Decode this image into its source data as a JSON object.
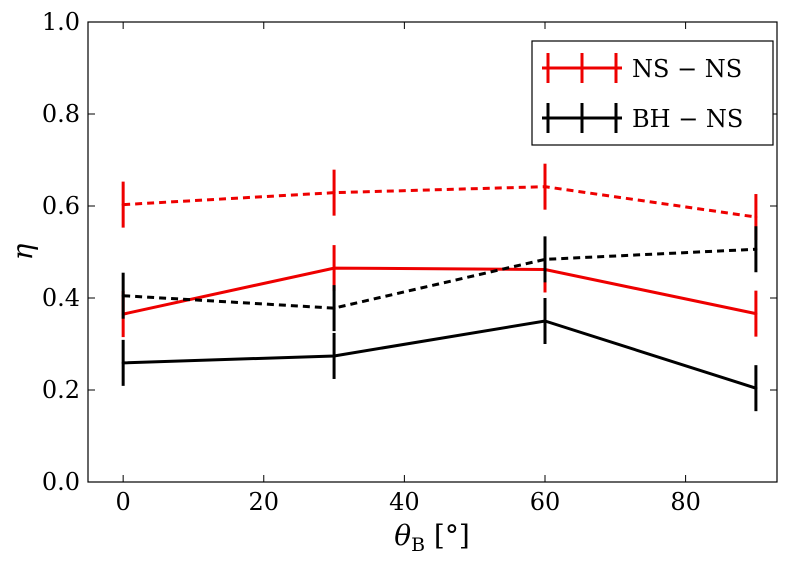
{
  "chart_data": {
    "type": "line",
    "title": "",
    "xlabel": "θ",
    "xlabel_sub": "B",
    "xlabel_unit": " [°]",
    "ylabel": "η",
    "xlim": [
      -5,
      93
    ],
    "ylim": [
      0.0,
      1.0
    ],
    "xticks": [
      0,
      20,
      40,
      60,
      80
    ],
    "xtick_labels": [
      "0",
      "20",
      "40",
      "60",
      "80"
    ],
    "yticks": [
      0.0,
      0.2,
      0.4,
      0.6,
      0.8,
      1.0
    ],
    "ytick_labels": [
      "0.0",
      "0.2",
      "0.4",
      "0.6",
      "0.8",
      "1.0"
    ],
    "grid": false,
    "legend_position": "top-right",
    "legend": [
      {
        "label": "NS − NS",
        "color": "#ee0000"
      },
      {
        "label": "BH − NS",
        "color": "#000000"
      }
    ],
    "x": [
      0,
      30,
      60,
      90
    ],
    "series": [
      {
        "name": "NS − NS (dashed)",
        "legend_group": "NS − NS",
        "color": "#ee0000",
        "dash": true,
        "values": [
          0.603,
          0.629,
          0.642,
          0.576
        ],
        "errors": [
          0.05,
          0.05,
          0.05,
          0.05
        ]
      },
      {
        "name": "NS − NS (solid)",
        "legend_group": "NS − NS",
        "color": "#ee0000",
        "dash": false,
        "values": [
          0.365,
          0.465,
          0.462,
          0.366
        ],
        "errors": [
          0.05,
          0.05,
          0.05,
          0.05
        ]
      },
      {
        "name": "BH − NS (dashed)",
        "legend_group": "BH − NS",
        "color": "#000000",
        "dash": true,
        "values": [
          0.405,
          0.378,
          0.484,
          0.506
        ],
        "errors": [
          0.05,
          0.05,
          0.05,
          0.05
        ]
      },
      {
        "name": "BH − NS (solid)",
        "legend_group": "BH − NS",
        "color": "#000000",
        "dash": false,
        "values": [
          0.259,
          0.274,
          0.35,
          0.204
        ],
        "errors": [
          0.05,
          0.05,
          0.05,
          0.05
        ]
      }
    ]
  }
}
